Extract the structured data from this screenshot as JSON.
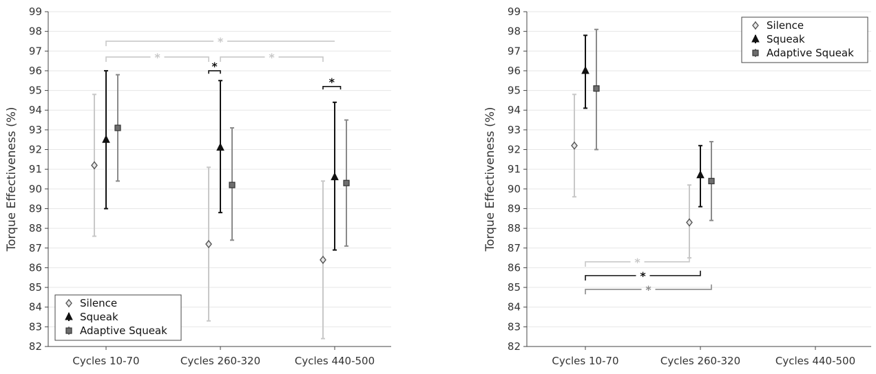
{
  "colors": {
    "silence": "#c8c8c8",
    "squeak": "#111111",
    "adaptive_squeak": "#8a8a8a",
    "grid": "#e6e6e6",
    "axis": "#444444",
    "background": "#ffffff"
  },
  "chart_data": [
    {
      "type": "scatter",
      "variant": "error-bar",
      "title": "",
      "xlabel": "",
      "ylabel": "Torque Effectiveness (%)",
      "ylim": [
        82,
        99
      ],
      "yticks": [
        "82",
        "83",
        "84",
        "85",
        "86",
        "87",
        "88",
        "89",
        "90",
        "91",
        "92",
        "93",
        "94",
        "95",
        "96",
        "97",
        "98",
        "99"
      ],
      "grid": true,
      "legend_placement": "bottom-left",
      "categories": [
        "Cycles 10-70",
        "Cycles 260-320",
        "Cycles 440-500"
      ],
      "series": [
        {
          "name": "Silence",
          "color_key": "silence",
          "marker": "diamond",
          "values": [
            91.2,
            87.2,
            86.4
          ],
          "lower": [
            87.6,
            83.3,
            82.4
          ],
          "upper": [
            94.8,
            91.1,
            90.4
          ]
        },
        {
          "name": "Squeak",
          "color_key": "squeak",
          "marker": "triangle",
          "values": [
            92.5,
            92.1,
            90.6
          ],
          "lower": [
            89.0,
            88.8,
            86.9
          ],
          "upper": [
            96.0,
            95.5,
            94.4
          ]
        },
        {
          "name": "Adaptive Squeak",
          "color_key": "adaptive_squeak",
          "marker": "square",
          "values": [
            93.1,
            90.2,
            90.3
          ],
          "lower": [
            90.4,
            87.4,
            87.1
          ],
          "upper": [
            95.8,
            93.1,
            93.5
          ]
        }
      ],
      "significance": [
        {
          "label": "*",
          "color_key": "silence",
          "from": "Cycles 10-70",
          "to": "Cycles 440-500",
          "y": 97.5,
          "offset_from": 0,
          "offset_to": 0,
          "tick_from": 0.25,
          "tick_to": 0
        },
        {
          "label": "*",
          "color_key": "silence",
          "from": "Cycles 10-70",
          "to": "Cycles 260-320",
          "y": 96.7,
          "offset_from": 0,
          "offset_to": -1,
          "tick_from": 0.25,
          "tick_to": 0.25
        },
        {
          "label": "*",
          "color_key": "silence",
          "from": "Cycles 260-320",
          "to": "Cycles 440-500",
          "y": 96.7,
          "offset_from": 0,
          "offset_to": -1,
          "tick_from": 0.25,
          "tick_to": 0.25
        },
        {
          "label": "*",
          "color_key": "squeak",
          "from": "Cycles 260-320",
          "to": "Cycles 260-320",
          "y": 96.0,
          "offset_from": -1,
          "offset_to": 0,
          "tick_from": 0.15,
          "tick_to": 0.15
        },
        {
          "label": "*",
          "color_key": "squeak",
          "from": "Cycles 440-500",
          "to": "Cycles 440-500",
          "y": 95.2,
          "offset_from": -1,
          "offset_to": 0.5,
          "tick_from": 0.15,
          "tick_to": 0.15
        }
      ]
    },
    {
      "type": "scatter",
      "variant": "error-bar",
      "title": "",
      "xlabel": "",
      "ylabel": "Torque Effectiveness (%)",
      "ylim": [
        82,
        99
      ],
      "yticks": [
        "82",
        "83",
        "84",
        "85",
        "86",
        "87",
        "88",
        "89",
        "90",
        "91",
        "92",
        "93",
        "94",
        "95",
        "96",
        "97",
        "98",
        "99"
      ],
      "grid": true,
      "legend_placement": "top-right",
      "categories": [
        "Cycles 10-70",
        "Cycles 260-320",
        "Cycles 440-500"
      ],
      "series": [
        {
          "name": "Silence",
          "color_key": "silence",
          "marker": "diamond",
          "values": [
            92.2,
            88.3,
            null
          ],
          "lower": [
            89.6,
            86.5,
            null
          ],
          "upper": [
            94.8,
            90.2,
            null
          ]
        },
        {
          "name": "Squeak",
          "color_key": "squeak",
          "marker": "triangle",
          "values": [
            96.0,
            90.7,
            null
          ],
          "lower": [
            94.1,
            89.1,
            null
          ],
          "upper": [
            97.8,
            92.2,
            null
          ]
        },
        {
          "name": "Adaptive Squeak",
          "color_key": "adaptive_squeak",
          "marker": "square",
          "values": [
            95.1,
            90.4,
            null
          ],
          "lower": [
            92.0,
            88.4,
            null
          ],
          "upper": [
            98.1,
            92.4,
            null
          ]
        }
      ],
      "significance": [
        {
          "label": "*",
          "color_key": "silence",
          "from": "Cycles 10-70",
          "to": "Cycles 260-320",
          "y": 86.3,
          "offset_from": 0,
          "offset_to": -1,
          "tick_from": 0.25,
          "tick_to": -0.25
        },
        {
          "label": "*",
          "color_key": "squeak",
          "from": "Cycles 10-70",
          "to": "Cycles 260-320",
          "y": 85.6,
          "offset_from": 0,
          "offset_to": 0,
          "tick_from": 0.25,
          "tick_to": -0.25
        },
        {
          "label": "*",
          "color_key": "adaptive_squeak",
          "from": "Cycles 10-70",
          "to": "Cycles 260-320",
          "y": 84.9,
          "offset_from": 0,
          "offset_to": 1,
          "tick_from": 0.25,
          "tick_to": -0.25
        }
      ]
    }
  ]
}
